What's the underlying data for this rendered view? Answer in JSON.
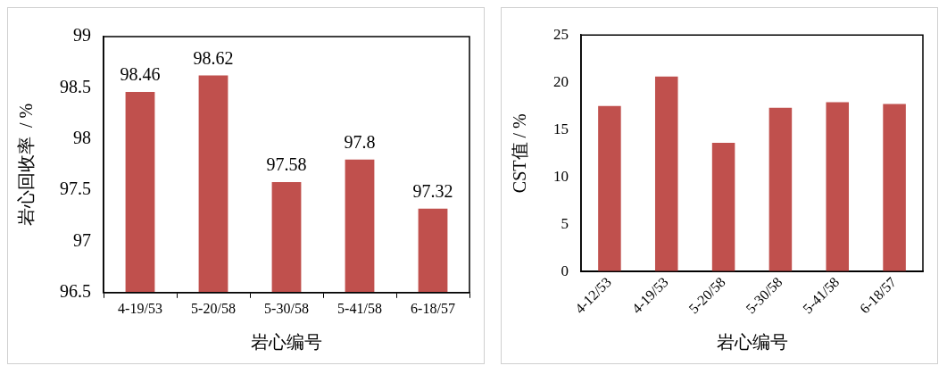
{
  "chart_data": [
    {
      "type": "bar",
      "xlabel": "岩心编号",
      "ylabel": "岩心回收率  / %",
      "categories": [
        "4-19/53",
        "5-20/58",
        "5-30/58",
        "5-41/58",
        "6-18/57"
      ],
      "values": [
        98.46,
        98.62,
        97.58,
        97.8,
        97.32
      ],
      "color": "#c0504d",
      "ylim": [
        96.5,
        99
      ],
      "yticks": [
        96.5,
        97,
        97.5,
        98,
        98.5,
        99
      ],
      "data_labels": true,
      "grid": false,
      "legend": false
    },
    {
      "type": "bar",
      "xlabel": "岩心编号",
      "ylabel": "CST值 / %",
      "categories": [
        "4-12/53",
        "4-19/53",
        "5-20/58",
        "5-30/58",
        "5-41/58",
        "6-18/57"
      ],
      "values": [
        17.5,
        20.6,
        13.6,
        17.3,
        17.9,
        17.7
      ],
      "color": "#c0504d",
      "ylim": [
        0,
        25
      ],
      "yticks": [
        0,
        5,
        10,
        15,
        20,
        25
      ],
      "grid": false,
      "legend": false
    }
  ]
}
